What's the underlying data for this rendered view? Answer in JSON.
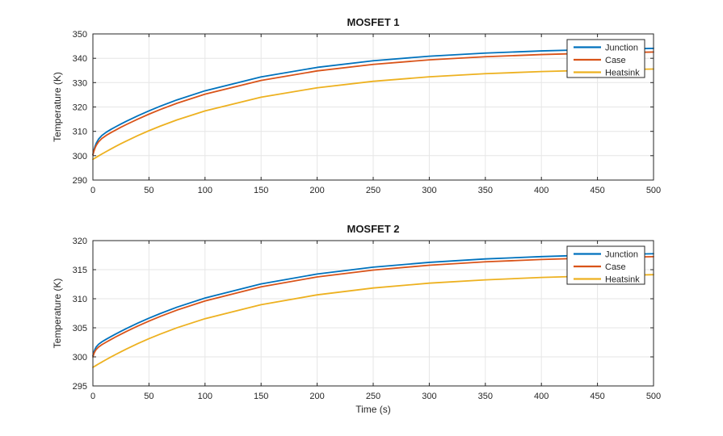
{
  "figure": {
    "background": "#ffffff",
    "axis_color": "#262626",
    "grid_color": "#e6e6e6",
    "legend_background": "#ffffff",
    "legend_border": "#262626"
  },
  "chart_data": [
    {
      "type": "line",
      "title": "MOSFET 1",
      "xlabel": "",
      "ylabel": "Temperature (K)",
      "xlim": [
        0,
        500
      ],
      "ylim": [
        290,
        350
      ],
      "xticks": [
        0,
        50,
        100,
        150,
        200,
        250,
        300,
        350,
        400,
        450,
        500
      ],
      "yticks": [
        290,
        300,
        310,
        320,
        330,
        340,
        350
      ],
      "grid": true,
      "legend": {
        "position": "northeast",
        "entries": [
          "Junction",
          "Case",
          "Heatsink"
        ]
      },
      "x": [
        0,
        1,
        2,
        3,
        5,
        8,
        12,
        16,
        20,
        25,
        30,
        40,
        50,
        60,
        75,
        100,
        150,
        200,
        250,
        300,
        350,
        400,
        450,
        500
      ],
      "series": [
        {
          "name": "Junction",
          "color": "#0072BD",
          "values": [
            300.5,
            302.49,
            303.99,
            305.14,
            306.77,
            308.3,
            309.66,
            310.78,
            311.79,
            313.01,
            314.17,
            316.38,
            318.42,
            320.31,
            322.91,
            326.65,
            332.34,
            336.26,
            338.97,
            340.84,
            342.13,
            343.02,
            343.63,
            344.06
          ]
        },
        {
          "name": "Case",
          "color": "#D95319",
          "values": [
            300.3,
            301.97,
            303.25,
            304.24,
            305.67,
            307.06,
            308.37,
            309.46,
            310.46,
            311.68,
            312.83,
            315.02,
            317.06,
            318.94,
            321.53,
            325.25,
            330.91,
            334.81,
            337.5,
            339.36,
            340.64,
            341.53,
            342.14,
            342.56
          ]
        },
        {
          "name": "Heatsink",
          "color": "#EDB120",
          "values": [
            298.5,
            298.78,
            299.06,
            299.34,
            299.88,
            300.69,
            301.73,
            302.75,
            303.73,
            304.93,
            306.07,
            308.25,
            310.26,
            312.13,
            314.7,
            318.39,
            324.01,
            327.88,
            330.55,
            332.39,
            333.67,
            334.55,
            335.15,
            335.57
          ]
        }
      ]
    },
    {
      "type": "line",
      "title": "MOSFET 2",
      "xlabel": "Time (s)",
      "ylabel": "Temperature (K)",
      "xlim": [
        0,
        500
      ],
      "ylim": [
        295,
        320
      ],
      "xticks": [
        0,
        50,
        100,
        150,
        200,
        250,
        300,
        350,
        400,
        450,
        500
      ],
      "yticks": [
        295,
        300,
        305,
        310,
        315,
        320
      ],
      "grid": true,
      "legend": {
        "position": "northeast",
        "entries": [
          "Junction",
          "Case",
          "Heatsink"
        ]
      },
      "x": [
        0,
        1,
        2,
        3,
        5,
        8,
        12,
        16,
        20,
        25,
        30,
        40,
        50,
        60,
        75,
        100,
        150,
        200,
        250,
        300,
        350,
        400,
        450,
        500
      ],
      "series": [
        {
          "name": "Junction",
          "color": "#0072BD",
          "values": [
            300.2,
            300.91,
            301.38,
            301.72,
            302.16,
            302.59,
            303.05,
            303.48,
            303.9,
            304.4,
            304.89,
            305.8,
            306.66,
            307.45,
            308.55,
            310.12,
            312.55,
            314.25,
            315.43,
            316.26,
            316.85,
            317.25,
            317.54,
            317.74
          ]
        },
        {
          "name": "Case",
          "color": "#D95319",
          "values": [
            300.0,
            300.59,
            300.99,
            301.28,
            301.68,
            302.1,
            302.55,
            302.98,
            303.4,
            303.9,
            304.39,
            305.3,
            306.16,
            306.95,
            308.05,
            309.62,
            312.05,
            313.75,
            314.93,
            315.76,
            316.35,
            316.75,
            317.04,
            317.24
          ]
        },
        {
          "name": "Heatsink",
          "color": "#EDB120",
          "values": [
            298.2,
            298.32,
            298.43,
            298.55,
            298.78,
            299.11,
            299.55,
            299.97,
            300.38,
            300.88,
            301.37,
            302.28,
            303.13,
            303.92,
            305.01,
            306.57,
            308.98,
            310.67,
            311.85,
            312.68,
            313.25,
            313.66,
            313.94,
            314.14
          ]
        }
      ]
    }
  ]
}
